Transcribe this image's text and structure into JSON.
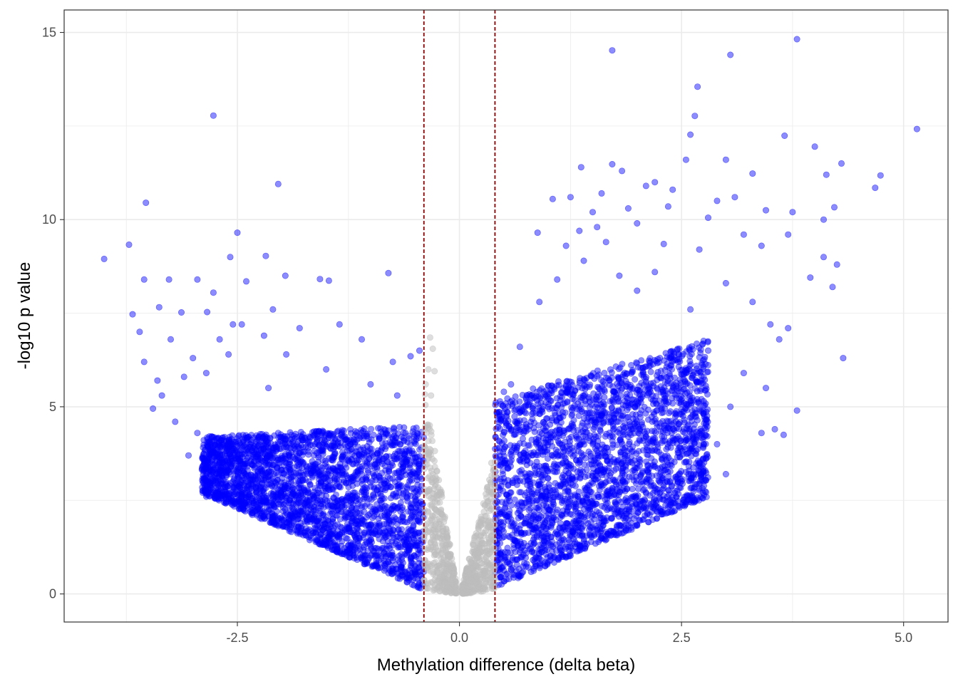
{
  "chart_data": {
    "type": "scatter",
    "title": "",
    "xlabel": "Methylation difference (delta beta)",
    "ylabel": "-log10 p value",
    "xlim": [
      -4.45,
      5.5
    ],
    "ylim": [
      -0.75,
      15.6
    ],
    "x_ticks": [
      {
        "value": -2.5,
        "label": "-2.5"
      },
      {
        "value": 0.0,
        "label": "0.0"
      },
      {
        "value": 2.5,
        "label": "2.5"
      },
      {
        "value": 5.0,
        "label": "5.0"
      }
    ],
    "y_ticks": [
      {
        "value": 0,
        "label": "0"
      },
      {
        "value": 5,
        "label": "5"
      },
      {
        "value": 10,
        "label": "10"
      },
      {
        "value": 15,
        "label": "15"
      }
    ],
    "x_minor_gridlines": [
      -3.75,
      -1.25,
      1.25,
      3.75
    ],
    "y_minor_gridlines": [
      2.5,
      7.5,
      12.5
    ],
    "grid": true,
    "theme": "bw",
    "threshold_lines": [
      {
        "axis": "x",
        "value": -0.4,
        "style": "dashed",
        "color": "#8b0000"
      },
      {
        "axis": "x",
        "value": 0.4,
        "style": "dashed",
        "color": "#8b0000"
      }
    ],
    "colors": {
      "significant": "#0000ff",
      "not_significant": "#bebebe",
      "threshold": "#8b0000",
      "grid": "#ebebeb",
      "panel_border": "#333333"
    },
    "series": [
      {
        "group": "significant-left",
        "color": "#0000ff",
        "opacity": 0.45,
        "envelope": {
          "x_from": -2.9,
          "x_to": -0.4,
          "lower_at_x_from": 2.7,
          "lower_at_x_to": 0.1,
          "upper_at_x_from": 4.2,
          "upper_at_x_to": 4.5
        },
        "points": [
          [
            -4.0,
            8.95
          ],
          [
            -3.72,
            9.33
          ],
          [
            -3.53,
            10.45
          ],
          [
            -2.77,
            12.78
          ],
          [
            -2.04,
            10.95
          ],
          [
            -2.5,
            9.65
          ],
          [
            -2.58,
            9.0
          ],
          [
            -2.18,
            9.03
          ],
          [
            -0.8,
            8.57
          ],
          [
            -3.68,
            7.47
          ],
          [
            -3.55,
            8.4
          ],
          [
            -3.27,
            8.4
          ],
          [
            -2.95,
            8.4
          ],
          [
            -2.4,
            8.35
          ],
          [
            -1.96,
            8.5
          ],
          [
            -1.57,
            8.41
          ],
          [
            -1.47,
            8.37
          ],
          [
            -3.38,
            7.66
          ],
          [
            -3.13,
            7.52
          ],
          [
            -2.84,
            7.53
          ],
          [
            -2.77,
            8.05
          ],
          [
            -3.6,
            7.0
          ],
          [
            -3.25,
            6.8
          ],
          [
            -3.55,
            6.2
          ],
          [
            -3.0,
            6.3
          ],
          [
            -2.7,
            6.8
          ],
          [
            -2.45,
            7.2
          ],
          [
            -2.2,
            6.9
          ],
          [
            -1.8,
            7.1
          ],
          [
            -3.4,
            5.7
          ],
          [
            -3.35,
            5.3
          ],
          [
            -3.1,
            5.8
          ],
          [
            -2.85,
            5.9
          ],
          [
            -3.45,
            4.95
          ],
          [
            -3.2,
            4.6
          ],
          [
            -2.95,
            4.3
          ],
          [
            -3.05,
            3.7
          ],
          [
            -2.7,
            3.5
          ],
          [
            -2.85,
            2.6
          ],
          [
            -2.55,
            2.5
          ],
          [
            -0.55,
            6.35
          ],
          [
            -0.7,
            5.3
          ],
          [
            -0.75,
            6.2
          ],
          [
            -0.45,
            6.5
          ],
          [
            -1.1,
            6.8
          ],
          [
            -1.35,
            7.2
          ],
          [
            -2.1,
            7.6
          ],
          [
            -2.55,
            7.2
          ],
          [
            -1.95,
            6.4
          ],
          [
            -1.5,
            6.0
          ],
          [
            -1.0,
            5.6
          ],
          [
            -2.6,
            6.4
          ],
          [
            -2.15,
            5.5
          ],
          [
            -2.35,
            4.0
          ]
        ]
      },
      {
        "group": "significant-right",
        "color": "#0000ff",
        "opacity": 0.45,
        "envelope": {
          "x_from": 0.4,
          "x_to": 2.8,
          "lower_at_x_from": 0.15,
          "lower_at_x_to": 2.6,
          "upper_at_x_from": 5.2,
          "upper_at_x_to": 6.8
        },
        "points": [
          [
            3.8,
            14.82
          ],
          [
            1.72,
            14.52
          ],
          [
            3.05,
            14.4
          ],
          [
            2.68,
            13.55
          ],
          [
            2.65,
            12.77
          ],
          [
            5.15,
            12.42
          ],
          [
            3.66,
            12.24
          ],
          [
            2.6,
            12.27
          ],
          [
            4.0,
            11.95
          ],
          [
            2.55,
            11.6
          ],
          [
            3.0,
            11.6
          ],
          [
            4.3,
            11.5
          ],
          [
            1.72,
            11.48
          ],
          [
            1.37,
            11.4
          ],
          [
            1.83,
            11.3
          ],
          [
            4.74,
            11.18
          ],
          [
            4.13,
            11.2
          ],
          [
            3.3,
            11.23
          ],
          [
            2.2,
            11.0
          ],
          [
            4.68,
            10.85
          ],
          [
            1.6,
            10.7
          ],
          [
            2.4,
            10.8
          ],
          [
            1.05,
            10.55
          ],
          [
            1.25,
            10.6
          ],
          [
            2.1,
            10.9
          ],
          [
            3.1,
            10.6
          ],
          [
            4.22,
            10.33
          ],
          [
            2.9,
            10.5
          ],
          [
            2.35,
            10.35
          ],
          [
            1.9,
            10.3
          ],
          [
            1.5,
            10.2
          ],
          [
            3.45,
            10.25
          ],
          [
            3.75,
            10.2
          ],
          [
            4.1,
            10.0
          ],
          [
            2.8,
            10.05
          ],
          [
            2.0,
            9.9
          ],
          [
            1.55,
            9.8
          ],
          [
            1.35,
            9.7
          ],
          [
            0.88,
            9.65
          ],
          [
            3.2,
            9.6
          ],
          [
            3.7,
            9.6
          ],
          [
            1.2,
            9.3
          ],
          [
            1.65,
            9.4
          ],
          [
            2.3,
            9.35
          ],
          [
            2.7,
            9.2
          ],
          [
            3.4,
            9.3
          ],
          [
            4.1,
            9.0
          ],
          [
            3.95,
            8.45
          ],
          [
            4.25,
            8.8
          ],
          [
            4.2,
            8.2
          ],
          [
            4.32,
            6.3
          ],
          [
            3.8,
            4.9
          ],
          [
            3.0,
            8.3
          ],
          [
            3.5,
            7.2
          ],
          [
            3.4,
            4.3
          ],
          [
            3.55,
            4.4
          ],
          [
            3.65,
            4.25
          ],
          [
            3.2,
            5.9
          ],
          [
            3.45,
            5.5
          ],
          [
            3.05,
            5.0
          ],
          [
            2.9,
            4.0
          ],
          [
            3.0,
            3.2
          ],
          [
            2.7,
            3.4
          ],
          [
            2.5,
            4.8
          ],
          [
            2.8,
            6.5
          ],
          [
            3.3,
            7.8
          ],
          [
            3.6,
            6.8
          ],
          [
            3.7,
            7.1
          ],
          [
            2.2,
            8.6
          ],
          [
            1.8,
            8.5
          ],
          [
            1.1,
            8.4
          ],
          [
            0.9,
            7.8
          ],
          [
            0.68,
            6.6
          ],
          [
            0.58,
            5.6
          ],
          [
            0.5,
            5.4
          ],
          [
            0.62,
            4.9
          ],
          [
            1.4,
            8.9
          ],
          [
            2.0,
            8.1
          ],
          [
            2.6,
            7.6
          ]
        ]
      },
      {
        "group": "not-significant-left",
        "color": "#bebebe",
        "opacity": 0.5,
        "envelope": {
          "x_from": -0.4,
          "x_to": -0.03,
          "lower_at_x_from": 0.1,
          "lower_at_x_to": 0.0,
          "upper_at_x_from": 5.7,
          "upper_at_x_to": 0.2
        },
        "points": [
          [
            -0.33,
            6.85
          ],
          [
            -0.3,
            6.55
          ],
          [
            -0.35,
            6.0
          ],
          [
            -0.28,
            5.95
          ],
          [
            -0.38,
            5.6
          ],
          [
            -0.32,
            5.3
          ]
        ]
      },
      {
        "group": "not-significant-right",
        "color": "#bebebe",
        "opacity": 0.5,
        "envelope": {
          "x_from": 0.03,
          "x_to": 0.4,
          "lower_at_x_from": 0.0,
          "lower_at_x_to": 0.1,
          "upper_at_x_from": 0.2,
          "upper_at_x_to": 3.7
        },
        "points": [
          [
            0.36,
            3.5
          ],
          [
            0.38,
            3.3
          ]
        ]
      }
    ]
  }
}
